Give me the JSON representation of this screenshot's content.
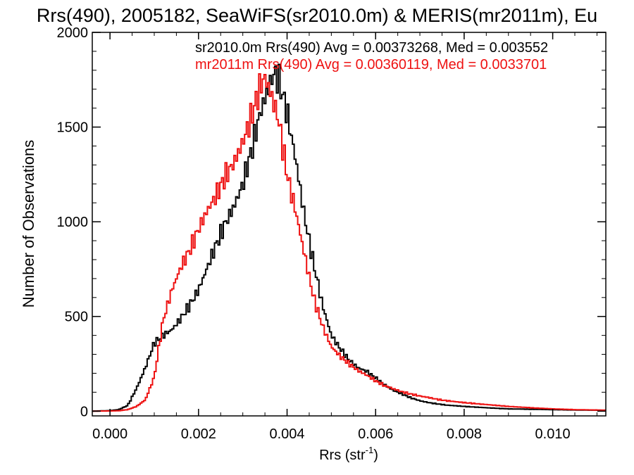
{
  "chart_data": {
    "type": "line",
    "title": "Rrs(490), 2005182, SeaWiFS(sr2010.0m) & MERIS(mr2011m), Eu",
    "xlabel": "Rrs (str",
    "xlabel_sup": "-1",
    "xlabel_close": ")",
    "ylabel": "Number of Observations",
    "xlim": [
      -0.0004,
      0.0112
    ],
    "ylim": [
      -25,
      2000
    ],
    "x_ticks": [
      0.0,
      0.002,
      0.004,
      0.006,
      0.008,
      0.01
    ],
    "x_tick_labels": [
      "0.000",
      "0.002",
      "0.004",
      "0.006",
      "0.008",
      "0.010"
    ],
    "y_ticks": [
      0,
      500,
      1000,
      1500,
      2000
    ],
    "y_tick_labels": [
      "0",
      "500",
      "1000",
      "1500",
      "2000"
    ],
    "style": "step",
    "legend_position": "top-right",
    "series": [
      {
        "name": "sr2010.0m Rrs(490) Avg = 0.00373268, Med = 0.003552",
        "color": "#000000",
        "points": [
          [
            -0.0004,
            0
          ],
          [
            0.0,
            3
          ],
          [
            0.0002,
            8
          ],
          [
            0.0004,
            30
          ],
          [
            0.0006,
            120
          ],
          [
            0.0008,
            230
          ],
          [
            0.001,
            360
          ],
          [
            0.0012,
            400
          ],
          [
            0.0014,
            430
          ],
          [
            0.0016,
            490
          ],
          [
            0.0018,
            560
          ],
          [
            0.002,
            640
          ],
          [
            0.0022,
            760
          ],
          [
            0.0024,
            880
          ],
          [
            0.0026,
            990
          ],
          [
            0.0028,
            1080
          ],
          [
            0.003,
            1200
          ],
          [
            0.0032,
            1380
          ],
          [
            0.0034,
            1580
          ],
          [
            0.0036,
            1720
          ],
          [
            0.0037,
            1780
          ],
          [
            0.0038,
            1760
          ],
          [
            0.004,
            1580
          ],
          [
            0.0042,
            1320
          ],
          [
            0.0044,
            1020
          ],
          [
            0.0046,
            780
          ],
          [
            0.0048,
            560
          ],
          [
            0.005,
            400
          ],
          [
            0.0052,
            330
          ],
          [
            0.0054,
            270
          ],
          [
            0.0056,
            230
          ],
          [
            0.0058,
            210
          ],
          [
            0.006,
            175
          ],
          [
            0.0062,
            140
          ],
          [
            0.0064,
            110
          ],
          [
            0.0066,
            90
          ],
          [
            0.0068,
            70
          ],
          [
            0.007,
            55
          ],
          [
            0.0072,
            45
          ],
          [
            0.0074,
            38
          ],
          [
            0.0076,
            32
          ],
          [
            0.008,
            25
          ],
          [
            0.0085,
            18
          ],
          [
            0.009,
            12
          ],
          [
            0.0095,
            10
          ],
          [
            0.01,
            8
          ],
          [
            0.0105,
            6
          ],
          [
            0.011,
            5
          ],
          [
            0.0112,
            4
          ]
        ]
      },
      {
        "name": "mr2011m Rrs(490) Avg = 0.00360119, Med = 0.0033701",
        "color": "#ee1111",
        "points": [
          [
            -0.0004,
            0
          ],
          [
            0.0,
            1
          ],
          [
            0.0002,
            2
          ],
          [
            0.0004,
            8
          ],
          [
            0.0006,
            25
          ],
          [
            0.0008,
            60
          ],
          [
            0.001,
            180
          ],
          [
            0.0012,
            480
          ],
          [
            0.0014,
            640
          ],
          [
            0.0016,
            760
          ],
          [
            0.0018,
            850
          ],
          [
            0.002,
            960
          ],
          [
            0.0022,
            1060
          ],
          [
            0.0024,
            1140
          ],
          [
            0.0026,
            1240
          ],
          [
            0.0028,
            1310
          ],
          [
            0.003,
            1420
          ],
          [
            0.0032,
            1560
          ],
          [
            0.0034,
            1720
          ],
          [
            0.0035,
            1760
          ],
          [
            0.0036,
            1700
          ],
          [
            0.0038,
            1550
          ],
          [
            0.004,
            1250
          ],
          [
            0.0042,
            1050
          ],
          [
            0.0044,
            820
          ],
          [
            0.0046,
            600
          ],
          [
            0.0048,
            450
          ],
          [
            0.005,
            340
          ],
          [
            0.0052,
            290
          ],
          [
            0.0054,
            250
          ],
          [
            0.0056,
            215
          ],
          [
            0.0058,
            190
          ],
          [
            0.006,
            160
          ],
          [
            0.0062,
            135
          ],
          [
            0.0064,
            118
          ],
          [
            0.0066,
            102
          ],
          [
            0.0068,
            90
          ],
          [
            0.007,
            80
          ],
          [
            0.0072,
            72
          ],
          [
            0.0074,
            62
          ],
          [
            0.0076,
            55
          ],
          [
            0.008,
            45
          ],
          [
            0.0085,
            35
          ],
          [
            0.009,
            25
          ],
          [
            0.0095,
            18
          ],
          [
            0.01,
            12
          ],
          [
            0.0105,
            8
          ],
          [
            0.011,
            6
          ],
          [
            0.0112,
            5
          ]
        ]
      }
    ]
  }
}
